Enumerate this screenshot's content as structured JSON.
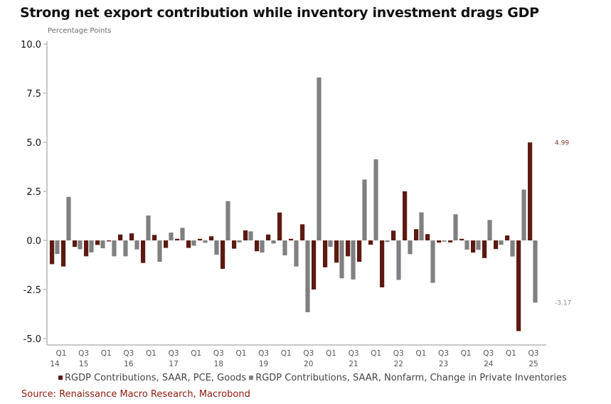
{
  "title": "Strong net export contribution while inventory investment drags GDP",
  "source": "Source: Renaissance Macro Research, Macrobond",
  "colors": {
    "goods": "#5c1a10",
    "inventories": "#808080",
    "axis": "#c8c8c8",
    "source_text": "#8b1a0e"
  },
  "chart_data": {
    "type": "bar",
    "title": "Strong net export contribution while inventory investment drags GDP",
    "xlabel": "",
    "ylabel": "Percentage Points",
    "ylim": [
      -5.0,
      10.0
    ],
    "yticks": [
      "10.0",
      "7.5",
      "5.0",
      "2.5",
      "0.0",
      "-2.5",
      "-5.0"
    ],
    "ytick_values": [
      10.0,
      7.5,
      5.0,
      2.5,
      0.0,
      -2.5,
      -5.0
    ],
    "grid": false,
    "legend_position": "bottom",
    "xtick_labels": [
      {
        "q": "Q1",
        "y": "14"
      },
      {
        "q": "Q3",
        "y": "15"
      },
      {
        "q": "Q1",
        "y": ""
      },
      {
        "q": "Q3",
        "y": "16"
      },
      {
        "q": "Q1",
        "y": ""
      },
      {
        "q": "Q3",
        "y": "17"
      },
      {
        "q": "Q1",
        "y": ""
      },
      {
        "q": "Q3",
        "y": "18"
      },
      {
        "q": "Q1",
        "y": ""
      },
      {
        "q": "Q3",
        "y": "19"
      },
      {
        "q": "Q1",
        "y": ""
      },
      {
        "q": "Q3",
        "y": "20"
      },
      {
        "q": "Q1",
        "y": ""
      },
      {
        "q": "Q3",
        "y": "21"
      },
      {
        "q": "Q1",
        "y": ""
      },
      {
        "q": "Q3",
        "y": "22"
      },
      {
        "q": "Q1",
        "y": ""
      },
      {
        "q": "Q3",
        "y": "23"
      },
      {
        "q": "Q1",
        "y": ""
      },
      {
        "q": "Q3",
        "y": "24"
      },
      {
        "q": "Q1",
        "y": ""
      },
      {
        "q": "Q3",
        "y": "25"
      }
    ],
    "categories": [
      "Q1 2015",
      "Q2 2015",
      "Q3 2015",
      "Q4 2015",
      "Q1 2016",
      "Q2 2016",
      "Q3 2016",
      "Q4 2016",
      "Q1 2017",
      "Q2 2017",
      "Q3 2017",
      "Q4 2017",
      "Q1 2018",
      "Q2 2018",
      "Q3 2018",
      "Q4 2018",
      "Q1 2019",
      "Q2 2019",
      "Q3 2019",
      "Q4 2019",
      "Q1 2020",
      "Q2 2020",
      "Q3 2020",
      "Q4 2020",
      "Q1 2021",
      "Q2 2021",
      "Q3 2021",
      "Q4 2021",
      "Q1 2022",
      "Q2 2022",
      "Q3 2022",
      "Q4 2022",
      "Q1 2023",
      "Q2 2023",
      "Q3 2023",
      "Q4 2023",
      "Q1 2024",
      "Q2 2024",
      "Q3 2024",
      "Q4 2024",
      "Q1 2025",
      "Q2 2025",
      "Q3 2025"
    ],
    "series": [
      {
        "name": "RGDP Contributions, SAAR, PCE, Goods",
        "color": "#5c1a10",
        "values": [
          -1.21,
          -1.33,
          -0.33,
          -0.81,
          -0.23,
          -0.05,
          0.3,
          0.36,
          -1.15,
          0.28,
          -0.38,
          0.08,
          -0.38,
          0.08,
          0.21,
          -1.45,
          -0.42,
          0.51,
          -0.55,
          0.3,
          1.42,
          0.08,
          0.82,
          -2.5,
          -1.37,
          -1.13,
          -0.81,
          -1.09,
          -0.22,
          -2.39,
          0.5,
          2.5,
          0.57,
          0.32,
          -0.11,
          -0.1,
          0.08,
          -0.62,
          -0.9,
          -0.44,
          0.25,
          -4.62,
          4.99
        ],
        "last_value_label": "4.99"
      },
      {
        "name": "RGDP Contributions, SAAR, Nonfarm, Change in Private Inventories",
        "color": "#808080",
        "values": [
          -0.69,
          2.22,
          -0.45,
          -0.61,
          -0.4,
          -0.81,
          -0.81,
          -0.46,
          1.27,
          -1.09,
          0.4,
          0.64,
          -0.27,
          -0.12,
          -0.73,
          2.0,
          -0.1,
          0.46,
          -0.62,
          -0.16,
          -0.76,
          -1.33,
          -3.66,
          8.3,
          -0.33,
          -1.93,
          -1.99,
          3.1,
          4.13,
          -0.08,
          -2.01,
          -0.7,
          1.43,
          -2.16,
          -0.06,
          1.33,
          -0.47,
          -0.48,
          1.04,
          -0.22,
          -0.82,
          2.59,
          -3.17
        ],
        "last_value_label": "-3.17"
      }
    ]
  }
}
